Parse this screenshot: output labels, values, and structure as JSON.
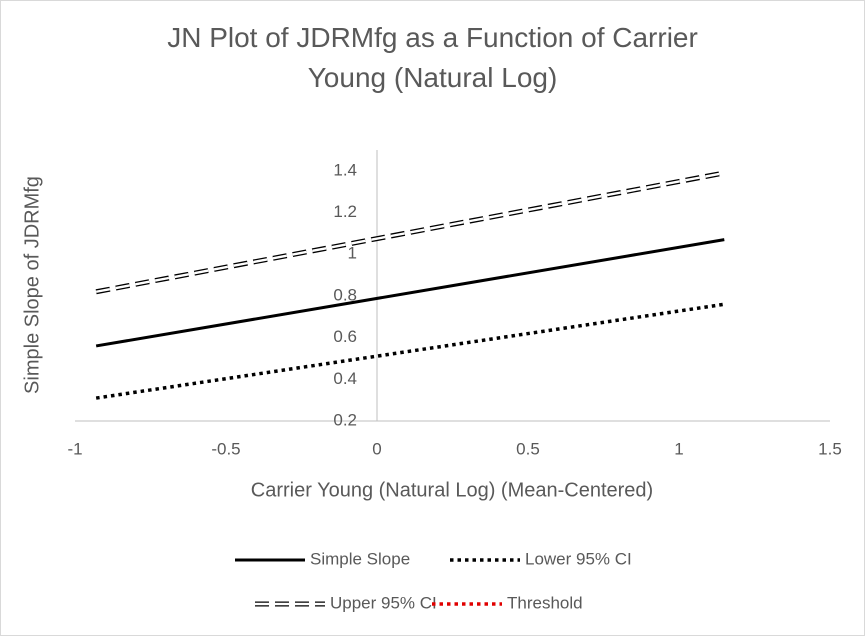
{
  "chart_data": {
    "type": "line",
    "title": "JN Plot of JDRMfg as a Function of Carrier Young (Natural Log)",
    "x_label": "Carrier Young (Natural Log) (Mean-Centered)",
    "y_label": "Simple Slope of JDRMfg",
    "x": [
      -0.93,
      1.15
    ],
    "series": [
      {
        "name": "Simple Slope",
        "color": "#000000",
        "line_style": "solid",
        "values": [
          0.56,
          1.07
        ]
      },
      {
        "name": "Lower 95% CI",
        "color": "#000000",
        "line_style": "dotted",
        "values": [
          0.31,
          0.76
        ]
      },
      {
        "name": "Upper 95% CI",
        "color": "#000000",
        "line_style": "double-dashed",
        "values": [
          0.82,
          1.39
        ]
      },
      {
        "name": "Threshold",
        "color": "#e00000",
        "line_style": "dotted",
        "values": [
          null,
          null
        ]
      }
    ],
    "xlim": [
      -1,
      1.5
    ],
    "xticks": [
      -1,
      -0.5,
      0,
      0.5,
      1,
      1.5
    ],
    "ylim": [
      0.2,
      1.5
    ],
    "yticks": [
      0.2,
      0.4,
      0.6,
      0.8,
      {
        "value": 1.0,
        "label": "1"
      },
      1.2,
      1.4
    ],
    "grid": false,
    "legend": "bottom"
  }
}
